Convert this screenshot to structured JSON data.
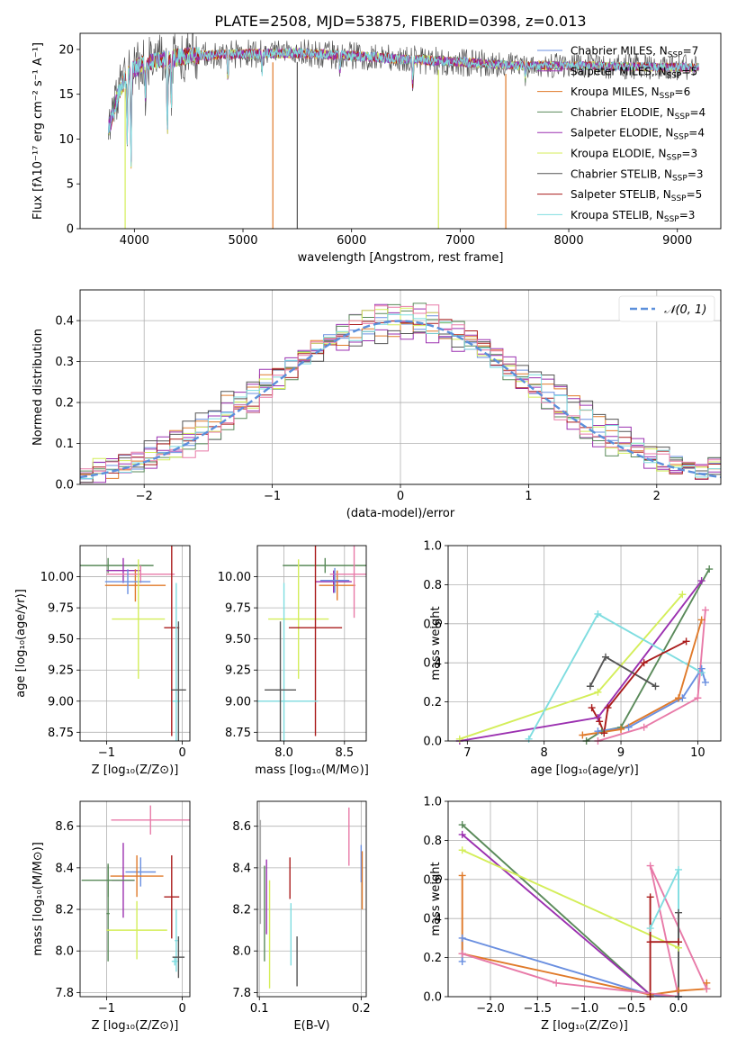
{
  "colors": {
    "Chabrier MILES": "#6a8fe0",
    "Salpeter MILES": "#9b30b0",
    "Kroupa MILES": "#e07a2a",
    "Chabrier ELODIE": "#5a8a5a",
    "Salpeter ELODIE": "#9b30b0",
    "Kroupa ELODIE": "#d4ee5a",
    "Chabrier STELIB": "#555555",
    "Salpeter STELIB": "#aa1c1c",
    "Kroupa STELIB": "#7fdde0",
    "normal": "#5b8fdb",
    "grid": "#b0b0b0"
  },
  "chart_data": [
    {
      "id": "spectrum",
      "type": "line",
      "title": "PLATE=2508, MJD=53875, FIBERID=0398, z=0.013",
      "xlabel": "wavelength [Angstrom, rest frame]",
      "ylabel": "Flux [fλ10⁻¹⁷ erg cm⁻² s⁻¹ A⁻¹]",
      "xlim": [
        3500,
        9400
      ],
      "ylim": [
        0,
        21.8
      ],
      "xticks": [
        4000,
        5000,
        6000,
        7000,
        8000,
        9000
      ],
      "yticks": [
        0,
        5,
        10,
        15,
        20
      ],
      "grid": false,
      "legend_position": "top-right",
      "legend": [
        {
          "label": "Chabrier MILES, N",
          "sub": "SSP",
          "eq": "=7",
          "color": "#6a8fe0"
        },
        {
          "label": "Salpeter MILES, N",
          "sub": "SSP",
          "eq": "=5",
          "color": "#9b30b0"
        },
        {
          "label": "Kroupa MILES, N",
          "sub": "SSP",
          "eq": "=6",
          "color": "#e07a2a"
        },
        {
          "label": "Chabrier ELODIE, N",
          "sub": "SSP",
          "eq": "=4",
          "color": "#5a8a5a"
        },
        {
          "label": "Salpeter ELODIE, N",
          "sub": "SSP",
          "eq": "=4",
          "color": "#9b30b0"
        },
        {
          "label": "Kroupa ELODIE, N",
          "sub": "SSP",
          "eq": "=3",
          "color": "#d4ee5a"
        },
        {
          "label": "Chabrier STELIB, N",
          "sub": "SSP",
          "eq": "=3",
          "color": "#555555"
        },
        {
          "label": "Salpeter STELIB, N",
          "sub": "SSP",
          "eq": "=5",
          "color": "#aa1c1c"
        },
        {
          "label": "Kroupa STELIB, N",
          "sub": "SSP",
          "eq": "=3",
          "color": "#7fdde0"
        }
      ],
      "continuum": [
        [
          3760,
          11
        ],
        [
          3850,
          15
        ],
        [
          3950,
          17.5
        ],
        [
          4100,
          18.5
        ],
        [
          4500,
          19.3
        ],
        [
          5000,
          19.5
        ],
        [
          5500,
          19.6
        ],
        [
          6000,
          19.3
        ],
        [
          6500,
          18.9
        ],
        [
          7000,
          18.6
        ],
        [
          7500,
          18.2
        ],
        [
          8000,
          18.2
        ],
        [
          8500,
          18.1
        ],
        [
          9000,
          18.0
        ],
        [
          9200,
          18.0
        ]
      ],
      "absorption_lines": [
        [
          3934,
          9.5
        ],
        [
          3969,
          7
        ],
        [
          4102,
          15
        ],
        [
          4304,
          10.5
        ],
        [
          4340,
          13.5
        ],
        [
          4861,
          16.5
        ],
        [
          5175,
          17.5
        ],
        [
          5893,
          17.5
        ],
        [
          6563,
          16
        ],
        [
          7600,
          16.8
        ]
      ],
      "data_dropouts": [
        {
          "x": 3915,
          "color": "#d4ee5a"
        },
        {
          "x": 5275,
          "color": "#e07a2a"
        },
        {
          "x": 5500,
          "color": "#555555"
        },
        {
          "x": 6800,
          "color": "#d4ee5a"
        },
        {
          "x": 7420,
          "color": "#e07a2a"
        }
      ]
    },
    {
      "id": "residuals",
      "type": "area",
      "xlabel": "(data-model)/error",
      "ylabel": "Normed distribution",
      "xlim": [
        -2.5,
        2.5
      ],
      "ylim": [
        0,
        0.475
      ],
      "xticks": [
        -2,
        -1,
        0,
        1,
        2
      ],
      "yticks": [
        0.0,
        0.1,
        0.2,
        0.3,
        0.4
      ],
      "grid": true,
      "legend_position": "top-right",
      "legend_label": "𝒩(0, 1)",
      "bin_width": 0.1,
      "series_colors": [
        "#6a8fe0",
        "#9b30b0",
        "#e07a2a",
        "#5a8a5a",
        "#9b30b0",
        "#d4ee5a",
        "#555555",
        "#aa1c1c",
        "#7fdde0",
        "#e87aa8"
      ],
      "spread": [
        0.0,
        0.022,
        -0.018,
        0.028,
        -0.026,
        0.015,
        -0.032,
        0.01,
        -0.006,
        0.03
      ]
    },
    {
      "id": "age-vs-Z",
      "type": "scatter",
      "xlabel": "Z [log₁₀(Z/Z⊙)]",
      "ylabel": "age  [log₁₀(age/yr)]",
      "xlim": [
        -1.35,
        0.1
      ],
      "ylim": [
        8.68,
        10.25
      ],
      "xticks": [
        -1,
        0
      ],
      "yticks": [
        8.75,
        9.0,
        9.25,
        9.5,
        9.75,
        10.0
      ],
      "grid": true,
      "points": [
        {
          "x": -0.98,
          "y": 10.09,
          "xerr": 0.6,
          "yerr": 0.06,
          "color": "#5a8a5a"
        },
        {
          "x": -0.78,
          "y": 10.05,
          "xerr": 0.22,
          "yerr": 0.1,
          "color": "#9b30b0"
        },
        {
          "x": -0.62,
          "y": 9.93,
          "xerr": 0.4,
          "yerr": 0.13,
          "color": "#e07a2a"
        },
        {
          "x": -0.55,
          "y": 10.02,
          "xerr": 0.45,
          "yerr": 0.07,
          "color": "#e87aa8"
        },
        {
          "x": -0.72,
          "y": 9.96,
          "xerr": 0.3,
          "yerr": 0.1,
          "color": "#6a8fe0"
        },
        {
          "x": -0.58,
          "y": 9.66,
          "xerr": 0.35,
          "yerr": 0.48,
          "color": "#d4ee5a"
        },
        {
          "x": -0.14,
          "y": 9.59,
          "xerr": 0.1,
          "yerr": 0.87,
          "color": "#aa1c1c"
        },
        {
          "x": -0.08,
          "y": 9.0,
          "xerr": 0.05,
          "yerr": 0.95,
          "color": "#7fdde0"
        },
        {
          "x": -0.05,
          "y": 9.09,
          "xerr": 0.1,
          "yerr": 0.55,
          "color": "#555555"
        }
      ]
    },
    {
      "id": "age-vs-mass",
      "type": "scatter",
      "xlabel": "mass [log₁₀(M/M⊙)]",
      "ylabel": "",
      "xlim": [
        7.78,
        8.68
      ],
      "ylim": [
        8.68,
        10.25
      ],
      "xticks": [
        8.0,
        8.5
      ],
      "yticks": [
        8.75,
        9.0,
        9.25,
        9.5,
        9.75,
        10.0
      ],
      "grid": true,
      "points": [
        {
          "x": 8.34,
          "y": 10.09,
          "xerr": 0.35,
          "yerr": 0.06,
          "color": "#5a8a5a"
        },
        {
          "x": 8.41,
          "y": 9.96,
          "xerr": 0.15,
          "yerr": 0.09,
          "color": "#9b30b0"
        },
        {
          "x": 8.44,
          "y": 9.93,
          "xerr": 0.15,
          "yerr": 0.12,
          "color": "#e07a2a"
        },
        {
          "x": 8.58,
          "y": 10.02,
          "xerr": 0.2,
          "yerr": 0.35,
          "color": "#e87aa8"
        },
        {
          "x": 8.42,
          "y": 9.97,
          "xerr": 0.12,
          "yerr": 0.1,
          "color": "#6a8fe0"
        },
        {
          "x": 8.12,
          "y": 9.66,
          "xerr": 0.25,
          "yerr": 0.48,
          "color": "#d4ee5a"
        },
        {
          "x": 8.26,
          "y": 9.59,
          "xerr": 0.22,
          "yerr": 0.87,
          "color": "#aa1c1c"
        },
        {
          "x": 8.0,
          "y": 9.0,
          "xerr": 0.28,
          "yerr": 0.95,
          "color": "#7fdde0"
        },
        {
          "x": 7.97,
          "y": 9.09,
          "xerr": 0.13,
          "yerr": 0.55,
          "color": "#555555"
        }
      ]
    },
    {
      "id": "weight-vs-age",
      "type": "line",
      "xlabel": "age  [log₁₀(age/yr)]",
      "ylabel": "mass weight",
      "xlim": [
        6.75,
        10.3
      ],
      "ylim": [
        0,
        1.0
      ],
      "xticks": [
        7,
        8,
        9,
        10
      ],
      "yticks": [
        0.0,
        0.2,
        0.4,
        0.6,
        0.8,
        1.0
      ],
      "grid": true,
      "series": [
        {
          "color": "#5a8a5a",
          "points": [
            [
              8.55,
              0.0
            ],
            [
              8.75,
              0.05
            ],
            [
              9.0,
              0.07
            ],
            [
              10.15,
              0.88
            ]
          ]
        },
        {
          "color": "#9b30b0",
          "points": [
            [
              6.9,
              0.0
            ],
            [
              8.7,
              0.12
            ],
            [
              10.05,
              0.82
            ]
          ]
        },
        {
          "color": "#d4ee5a",
          "points": [
            [
              6.9,
              0.01
            ],
            [
              8.7,
              0.25
            ],
            [
              9.8,
              0.75
            ]
          ]
        },
        {
          "color": "#7fdde0",
          "points": [
            [
              7.8,
              0.01
            ],
            [
              8.7,
              0.65
            ],
            [
              10.05,
              0.35
            ]
          ]
        },
        {
          "color": "#555555",
          "points": [
            [
              8.6,
              0.28
            ],
            [
              8.8,
              0.43
            ],
            [
              9.45,
              0.28
            ]
          ]
        },
        {
          "color": "#aa1c1c",
          "points": [
            [
              8.62,
              0.17
            ],
            [
              8.72,
              0.1
            ],
            [
              8.78,
              0.04
            ],
            [
              8.83,
              0.17
            ],
            [
              9.3,
              0.4
            ],
            [
              9.85,
              0.51
            ]
          ]
        },
        {
          "color": "#6a8fe0",
          "points": [
            [
              8.7,
              0.05
            ],
            [
              9.1,
              0.07
            ],
            [
              9.8,
              0.22
            ],
            [
              10.05,
              0.37
            ],
            [
              10.1,
              0.3
            ]
          ]
        },
        {
          "color": "#e07a2a",
          "points": [
            [
              8.5,
              0.03
            ],
            [
              9.0,
              0.06
            ],
            [
              9.75,
              0.22
            ],
            [
              10.05,
              0.62
            ]
          ]
        },
        {
          "color": "#e87aa8",
          "points": [
            [
              8.7,
              0.0
            ],
            [
              9.3,
              0.07
            ],
            [
              10.0,
              0.22
            ],
            [
              10.1,
              0.67
            ]
          ]
        }
      ]
    },
    {
      "id": "mass-vs-Z",
      "type": "scatter",
      "xlabel": "Z [log₁₀(Z/Z⊙)]",
      "ylabel": "mass [log₁₀(M/M⊙)]",
      "xlim": [
        -1.35,
        0.1
      ],
      "ylim": [
        7.78,
        8.72
      ],
      "xticks": [
        -1,
        0
      ],
      "yticks": [
        7.8,
        8.0,
        8.2,
        8.4,
        8.6
      ],
      "grid": true,
      "points": [
        {
          "x": -0.42,
          "y": 8.63,
          "xerr": 0.52,
          "yerr": 0.07,
          "color": "#e87aa8"
        },
        {
          "x": -0.55,
          "y": 8.38,
          "xerr": 0.2,
          "yerr": 0.07,
          "color": "#6a8fe0"
        },
        {
          "x": -0.6,
          "y": 8.36,
          "xerr": 0.35,
          "yerr": 0.1,
          "color": "#e07a2a"
        },
        {
          "x": -0.78,
          "y": 8.34,
          "xerr": 0.15,
          "yerr": 0.18,
          "color": "#9b30b0"
        },
        {
          "x": -0.98,
          "y": 8.34,
          "xerr": 0.35,
          "yerr": 0.08,
          "color": "#5a8a5a"
        },
        {
          "x": -0.98,
          "y": 8.18,
          "xerr": 0.02,
          "yerr": 0.23,
          "color": "#5a8a5a"
        },
        {
          "x": -0.6,
          "y": 8.1,
          "xerr": 0.4,
          "yerr": 0.14,
          "color": "#d4ee5a"
        },
        {
          "x": -0.14,
          "y": 8.26,
          "xerr": 0.1,
          "yerr": 0.2,
          "color": "#aa1c1c"
        },
        {
          "x": -0.08,
          "y": 8.05,
          "xerr": 0.02,
          "yerr": 0.15,
          "color": "#7fdde0"
        },
        {
          "x": -0.1,
          "y": 7.95,
          "xerr": 0.04,
          "yerr": 0.02,
          "color": "#7fdde0"
        },
        {
          "x": -0.05,
          "y": 7.97,
          "xerr": 0.08,
          "yerr": 0.1,
          "color": "#555555"
        }
      ]
    },
    {
      "id": "mass-vs-EBV",
      "type": "scatter",
      "xlabel": "E(B-V)",
      "ylabel": "",
      "xlim": [
        0.098,
        0.205
      ],
      "ylim": [
        7.78,
        8.72
      ],
      "xticks": [
        0.1,
        0.2
      ],
      "yticks": [
        7.8,
        8.0,
        8.2,
        8.4,
        8.6
      ],
      "grid": true,
      "points": [
        {
          "x": 0.101,
          "y": 8.38,
          "xerr": 0,
          "yerr": 0.25,
          "color": "#aaaaaa"
        },
        {
          "x": 0.105,
          "y": 8.18,
          "xerr": 0,
          "yerr": 0.23,
          "color": "#5a8a5a"
        },
        {
          "x": 0.107,
          "y": 8.26,
          "xerr": 0,
          "yerr": 0.18,
          "color": "#9b30b0"
        },
        {
          "x": 0.11,
          "y": 8.08,
          "xerr": 0,
          "yerr": 0.26,
          "color": "#d4ee5a"
        },
        {
          "x": 0.13,
          "y": 8.35,
          "xerr": 0,
          "yerr": 0.1,
          "color": "#aa1c1c"
        },
        {
          "x": 0.131,
          "y": 8.08,
          "xerr": 0,
          "yerr": 0.15,
          "color": "#7fdde0"
        },
        {
          "x": 0.137,
          "y": 7.95,
          "xerr": 0,
          "yerr": 0.12,
          "color": "#555555"
        },
        {
          "x": 0.188,
          "y": 8.55,
          "xerr": 0,
          "yerr": 0.14,
          "color": "#e87aa8"
        },
        {
          "x": 0.2,
          "y": 8.42,
          "xerr": 0,
          "yerr": 0.09,
          "color": "#6a8fe0"
        },
        {
          "x": 0.201,
          "y": 8.34,
          "xerr": 0,
          "yerr": 0.14,
          "color": "#e07a2a"
        }
      ]
    },
    {
      "id": "weight-vs-Z",
      "type": "line",
      "xlabel": "Z [log₁₀(Z/Z⊙)]",
      "ylabel": "mass weight",
      "xlim": [
        -2.45,
        0.45
      ],
      "ylim": [
        0,
        1.0
      ],
      "xticks": [
        -2.0,
        -1.5,
        -1.0,
        -0.5,
        0.0
      ],
      "yticks": [
        0.0,
        0.2,
        0.4,
        0.6,
        0.8,
        1.0
      ],
      "grid": true,
      "series": [
        {
          "color": "#5a8a5a",
          "points": [
            [
              -2.3,
              0.88
            ],
            [
              -0.3,
              0.01
            ],
            [
              0.0,
              0.0
            ]
          ]
        },
        {
          "color": "#9b30b0",
          "points": [
            [
              -2.3,
              0.83
            ],
            [
              -0.3,
              0.01
            ],
            [
              0.0,
              0.0
            ]
          ]
        },
        {
          "color": "#d4ee5a",
          "points": [
            [
              -2.3,
              0.75
            ],
            [
              0.0,
              0.25
            ]
          ]
        },
        {
          "color": "#6a8fe0",
          "points": [
            [
              -2.3,
              0.18
            ],
            [
              -2.3,
              0.3
            ],
            [
              -0.3,
              0.01
            ],
            [
              0.0,
              0.0
            ]
          ]
        },
        {
          "color": "#e07a2a",
          "points": [
            [
              -2.3,
              0.62
            ],
            [
              -2.3,
              0.22
            ],
            [
              -0.3,
              0.01
            ],
            [
              0.0,
              0.03
            ],
            [
              0.3,
              0.04
            ],
            [
              0.3,
              0.07
            ]
          ]
        },
        {
          "color": "#e87aa8",
          "points": [
            [
              -2.3,
              0.22
            ],
            [
              -1.3,
              0.07
            ],
            [
              0.0,
              0.0
            ],
            [
              -0.3,
              0.67
            ],
            [
              0.3,
              0.04
            ]
          ]
        },
        {
          "color": "#aa1c1c",
          "points": [
            [
              -0.3,
              0.51
            ],
            [
              -0.3,
              0.0
            ],
            [
              -0.3,
              0.28
            ],
            [
              0.0,
              0.28
            ]
          ]
        },
        {
          "color": "#7fdde0",
          "points": [
            [
              -0.3,
              0.35
            ],
            [
              0.0,
              0.65
            ],
            [
              0.0,
              0.0
            ]
          ]
        },
        {
          "color": "#555555",
          "points": [
            [
              0.0,
              0.43
            ],
            [
              0.0,
              0.0
            ]
          ]
        }
      ]
    }
  ]
}
